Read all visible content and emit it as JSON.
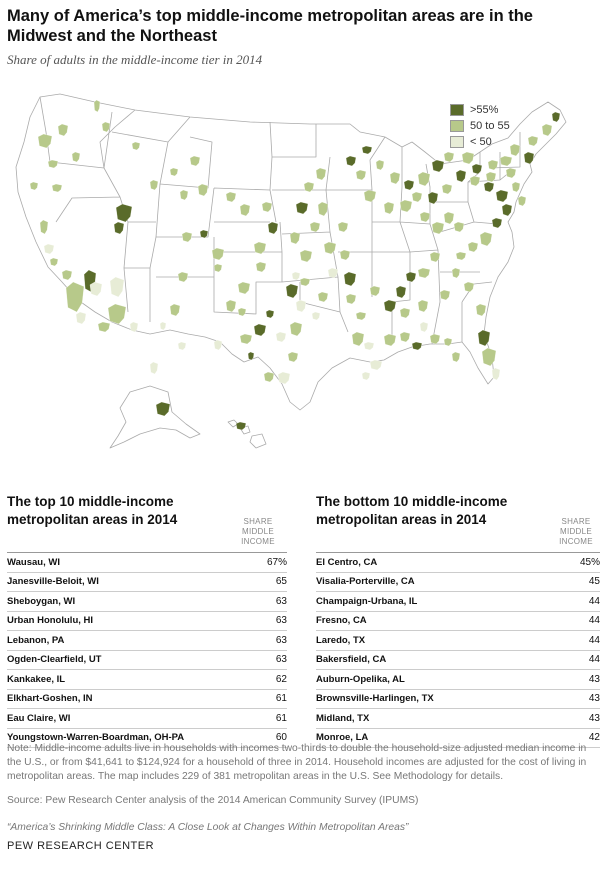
{
  "title": "Many of America’s top middle-income metropolitan areas are in the Midwest and the Northeast",
  "subtitle": "Share of adults in the middle-income tier in 2014",
  "legend": [
    {
      "label": ">55%",
      "color": "#5a6b2a"
    },
    {
      "label": "50 to 55",
      "color": "#b7c98a"
    },
    {
      "label": "< 50",
      "color": "#e7ecd6"
    }
  ],
  "colors": {
    "high": "#5a6b2a",
    "mid": "#b7c98a",
    "low": "#e7ecd6",
    "border": "#aaaaaa"
  },
  "top_table": {
    "title": "The top 10 middle-income metropolitan areas in 2014",
    "col_header": "SHARE MIDDLE INCOME",
    "rows": [
      {
        "name": "Wausau, WI",
        "value": "67%"
      },
      {
        "name": "Janesville-Beloit, WI",
        "value": "65"
      },
      {
        "name": "Sheboygan, WI",
        "value": "63"
      },
      {
        "name": "Urban Honolulu, HI",
        "value": "63"
      },
      {
        "name": "Lebanon, PA",
        "value": "63"
      },
      {
        "name": "Ogden-Clearfield, UT",
        "value": "63"
      },
      {
        "name": "Kankakee, IL",
        "value": "62"
      },
      {
        "name": "Elkhart-Goshen, IN",
        "value": "61"
      },
      {
        "name": "Eau Claire, WI",
        "value": "61"
      },
      {
        "name": "Youngstown-Warren-Boardman, OH-PA",
        "value": "60"
      }
    ]
  },
  "bottom_table": {
    "title": "The bottom 10 middle-income metropolitan areas in 2014",
    "col_header": "SHARE MIDDLE INCOME",
    "rows": [
      {
        "name": "El Centro, CA",
        "value": "45%"
      },
      {
        "name": "Visalia-Porterville, CA",
        "value": "45"
      },
      {
        "name": "Champaign-Urbana, IL",
        "value": "44"
      },
      {
        "name": "Fresno, CA",
        "value": "44"
      },
      {
        "name": "Laredo, TX",
        "value": "44"
      },
      {
        "name": "Bakersfield, CA",
        "value": "44"
      },
      {
        "name": "Auburn-Opelika, AL",
        "value": "43"
      },
      {
        "name": "Brownsville-Harlingen, TX",
        "value": "43"
      },
      {
        "name": "Midland, TX",
        "value": "43"
      },
      {
        "name": "Monroe, LA",
        "value": "42"
      }
    ]
  },
  "note": "Note: Middle-income adults live in households with incomes two-thirds to double the household-size adjusted median income in the U.S., or from $41,641 to $124,924 for a household of three in 2014. Household incomes are adjusted for the cost of living in metropolitan areas. The map includes 229 of 381 metropolitan areas in the U.S. See Methodology for details.",
  "source": "Source: Pew Research Center analysis of the 2014 American Community Survey (IPUMS)",
  "report": "“America’s Shrinking Middle Class: A Close Look at Changes Within Metropolitan Areas”",
  "brand": "PEW RESEARCH CENTER"
}
